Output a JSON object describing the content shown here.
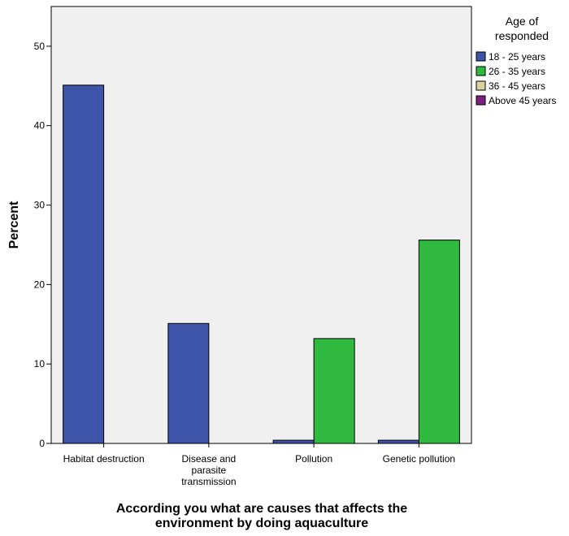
{
  "chart_data": {
    "type": "bar",
    "title": "",
    "ylabel": "Percent",
    "xlabel_lines": [
      "According  you what are causes that affects the",
      "environment by doing aquaculture"
    ],
    "ylim": [
      0,
      55
    ],
    "yticks": [
      0,
      10,
      20,
      30,
      40,
      50
    ],
    "grid": false,
    "legend_position": "top-right",
    "legend_title_lines": [
      "Age of",
      "responded"
    ],
    "categories": [
      [
        "Habitat destruction"
      ],
      [
        "Disease and",
        "parasite",
        "transmission"
      ],
      [
        "Pollution"
      ],
      [
        "Genetic pollution"
      ]
    ],
    "series": [
      {
        "name": "18 - 25 years",
        "color": "#3d54a8",
        "values": [
          45.1,
          15.1,
          0.4,
          0.4
        ]
      },
      {
        "name": "26 - 35 years",
        "color": "#2fba3f",
        "values": [
          0,
          0,
          13.2,
          25.6
        ]
      },
      {
        "name": "36 - 45 years",
        "color": "#d6d3a0",
        "values": [
          0,
          0,
          0,
          0
        ]
      },
      {
        "name": "Above 45 years",
        "color": "#7b1f80",
        "values": [
          0,
          0,
          0,
          0
        ]
      }
    ],
    "plot_background": "#f0f0f0"
  }
}
